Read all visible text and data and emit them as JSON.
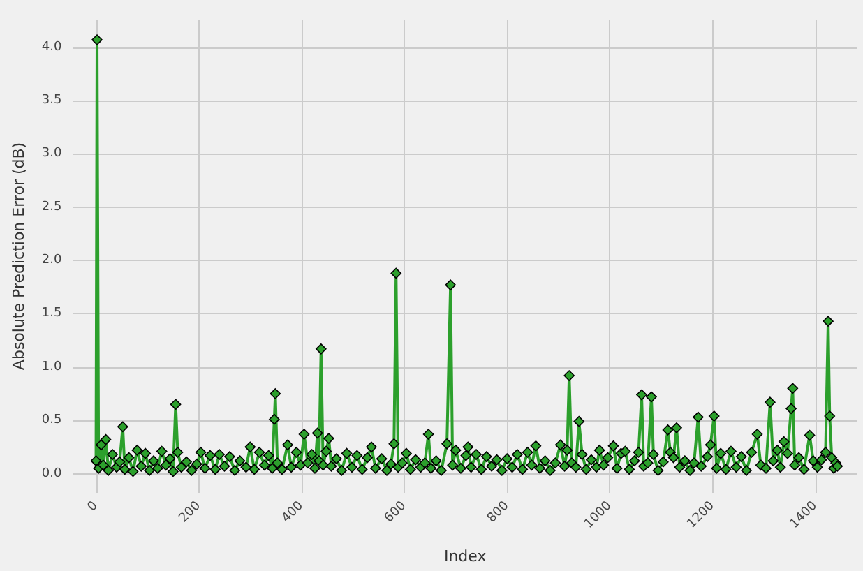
{
  "chart_data": {
    "type": "line",
    "xlabel": "Index",
    "ylabel": "Absolute Prediction Error (dB)",
    "xlim": [
      -45,
      1482
    ],
    "xticks": [
      0,
      200,
      400,
      600,
      800,
      1000,
      1200,
      1400
    ],
    "ylim": [
      -0.18,
      4.26
    ],
    "yticks": [
      {
        "value": 0,
        "label": "0.0"
      },
      0.5,
      {
        "value": 1,
        "label": "1.0"
      },
      1.5,
      {
        "value": 2,
        "label": "2.0"
      },
      2.5,
      {
        "value": 3,
        "label": "3.0"
      },
      3.5,
      {
        "value": 4,
        "label": "4.0"
      }
    ],
    "grid": true,
    "marker": "diamond",
    "line_style": "solid",
    "series": [
      {
        "color": "#2ca02c",
        "x": [
          0,
          2,
          5,
          10,
          14,
          19,
          24,
          32,
          40,
          46,
          52,
          56,
          64,
          72,
          80,
          88,
          96,
          104,
          112,
          120,
          128,
          136,
          144,
          150,
          155,
          159,
          166,
          176,
          186,
          196,
          204,
          212,
          222,
          232,
          240,
          250,
          260,
          270,
          280,
          292,
          300,
          308,
          318,
          328,
          336,
          343,
          347,
          349,
          353,
          362,
          373,
          380,
          390,
          398,
          405,
          412,
          420,
          426,
          431,
          434,
          438,
          442,
          448,
          453,
          458,
          468,
          478,
          488,
          498,
          508,
          518,
          528,
          536,
          544,
          556,
          566,
          574,
          580,
          584,
          588,
          596,
          604,
          612,
          622,
          632,
          640,
          647,
          652,
          662,
          672,
          683,
          690,
          694,
          700,
          710,
          720,
          724,
          730,
          740,
          750,
          760,
          770,
          780,
          790,
          800,
          810,
          820,
          830,
          840,
          848,
          856,
          864,
          874,
          884,
          894,
          904,
          912,
          917,
          921,
          926,
          934,
          940,
          946,
          954,
          964,
          974,
          980,
          988,
          996,
          1007,
          1014,
          1022,
          1030,
          1038,
          1048,
          1056,
          1062,
          1066,
          1074,
          1081,
          1085,
          1094,
          1104,
          1113,
          1118,
          1124,
          1130,
          1136,
          1146,
          1156,
          1164,
          1172,
          1178,
          1190,
          1196,
          1203,
          1208,
          1216,
          1226,
          1236,
          1246,
          1256,
          1266,
          1276,
          1287,
          1294,
          1304,
          1312,
          1318,
          1326,
          1332,
          1339,
          1346,
          1353,
          1356,
          1360,
          1368,
          1378,
          1389,
          1396,
          1404,
          1412,
          1420,
          1425,
          1428,
          1432,
          1436,
          1440,
          1443
        ],
        "values": [
          0.12,
          4.07,
          0.05,
          0.27,
          0.08,
          0.32,
          0.03,
          0.18,
          0.06,
          0.11,
          0.44,
          0.04,
          0.15,
          0.02,
          0.22,
          0.07,
          0.19,
          0.03,
          0.12,
          0.05,
          0.21,
          0.08,
          0.14,
          0.02,
          0.65,
          0.2,
          0.06,
          0.11,
          0.03,
          0.09,
          0.2,
          0.05,
          0.17,
          0.04,
          0.18,
          0.07,
          0.16,
          0.03,
          0.12,
          0.06,
          0.25,
          0.04,
          0.2,
          0.08,
          0.17,
          0.05,
          0.51,
          0.75,
          0.1,
          0.04,
          0.27,
          0.06,
          0.2,
          0.08,
          0.37,
          0.1,
          0.18,
          0.05,
          0.38,
          0.12,
          1.17,
          0.08,
          0.21,
          0.33,
          0.07,
          0.14,
          0.03,
          0.19,
          0.06,
          0.17,
          0.04,
          0.15,
          0.25,
          0.05,
          0.14,
          0.03,
          0.09,
          0.28,
          1.88,
          0.06,
          0.1,
          0.19,
          0.04,
          0.13,
          0.06,
          0.1,
          0.37,
          0.05,
          0.12,
          0.03,
          0.28,
          1.77,
          0.08,
          0.22,
          0.05,
          0.17,
          0.25,
          0.06,
          0.18,
          0.04,
          0.16,
          0.07,
          0.13,
          0.03,
          0.14,
          0.06,
          0.18,
          0.04,
          0.2,
          0.08,
          0.26,
          0.05,
          0.12,
          0.03,
          0.1,
          0.27,
          0.07,
          0.22,
          0.92,
          0.1,
          0.06,
          0.49,
          0.18,
          0.04,
          0.13,
          0.06,
          0.22,
          0.08,
          0.15,
          0.26,
          0.05,
          0.19,
          0.21,
          0.04,
          0.12,
          0.2,
          0.74,
          0.07,
          0.1,
          0.72,
          0.18,
          0.03,
          0.11,
          0.41,
          0.2,
          0.15,
          0.43,
          0.06,
          0.12,
          0.03,
          0.1,
          0.53,
          0.07,
          0.16,
          0.27,
          0.54,
          0.05,
          0.19,
          0.04,
          0.21,
          0.06,
          0.16,
          0.03,
          0.2,
          0.37,
          0.08,
          0.05,
          0.67,
          0.12,
          0.22,
          0.06,
          0.3,
          0.19,
          0.61,
          0.8,
          0.08,
          0.15,
          0.04,
          0.36,
          0.12,
          0.06,
          0.13,
          0.2,
          1.43,
          0.54,
          0.15,
          0.05,
          0.1,
          0.07
        ]
      }
    ]
  }
}
